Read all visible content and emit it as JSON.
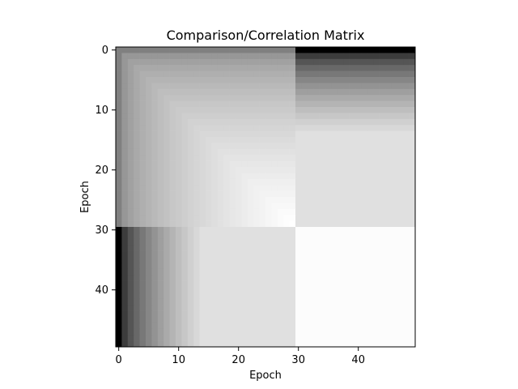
{
  "chart_data": {
    "type": "heatmap",
    "title": "Comparison/Correlation Matrix",
    "xlabel": "Epoch",
    "ylabel": "Epoch",
    "size": 50,
    "xlim": [
      -0.5,
      49.5
    ],
    "ylim": [
      49.5,
      -0.5
    ],
    "y_axis_inverted": true,
    "colormap": "gray",
    "grid": false,
    "x_ticks": [
      0,
      10,
      20,
      30,
      40
    ],
    "y_ticks": [
      0,
      10,
      20,
      30,
      40
    ],
    "block_boundary": 30,
    "values_description_levels": {
      "top_left_block_edge_gray": 0.5,
      "top_left_block_corner_value": 1.0,
      "top_right_block_row0_value": 0.0,
      "top_right_block_plateau_value": 0.88,
      "bottom_left_block_col0_value": 0.0,
      "bottom_left_block_plateau_value": 0.88,
      "bottom_right_block_value": 0.99
    }
  }
}
